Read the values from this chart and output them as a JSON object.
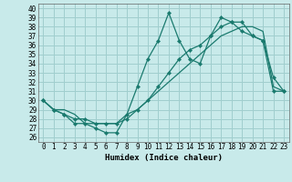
{
  "title": "",
  "xlabel": "Humidex (Indice chaleur)",
  "ylabel": "",
  "bg_color": "#c8eaea",
  "grid_color": "#a0cece",
  "line_color": "#1a7a6e",
  "xlim": [
    -0.5,
    23.5
  ],
  "ylim": [
    25.5,
    40.5
  ],
  "xticks": [
    0,
    1,
    2,
    3,
    4,
    5,
    6,
    7,
    8,
    9,
    10,
    11,
    12,
    13,
    14,
    15,
    16,
    17,
    18,
    19,
    20,
    21,
    22,
    23
  ],
  "yticks": [
    26,
    27,
    28,
    29,
    30,
    31,
    32,
    33,
    34,
    35,
    36,
    37,
    38,
    39,
    40
  ],
  "series1_x": [
    0,
    1,
    2,
    3,
    4,
    5,
    6,
    7,
    8,
    9,
    10,
    11,
    12,
    13,
    14,
    15,
    16,
    17,
    18,
    19,
    20,
    21,
    22,
    23
  ],
  "series1_y": [
    30.0,
    29.0,
    28.5,
    27.5,
    27.5,
    27.0,
    26.5,
    26.5,
    28.5,
    31.5,
    34.5,
    36.5,
    39.5,
    36.5,
    34.5,
    34.0,
    37.0,
    39.0,
    38.5,
    37.5,
    37.0,
    36.5,
    32.5,
    31.0
  ],
  "series2_x": [
    0,
    1,
    2,
    3,
    4,
    5,
    6,
    7,
    8,
    9,
    10,
    11,
    12,
    13,
    14,
    15,
    16,
    17,
    18,
    19,
    20,
    21,
    22,
    23
  ],
  "series2_y": [
    30.0,
    29.0,
    28.5,
    28.0,
    28.0,
    27.5,
    27.5,
    27.5,
    28.0,
    29.0,
    30.0,
    31.5,
    33.0,
    34.5,
    35.5,
    36.0,
    37.0,
    38.0,
    38.5,
    38.5,
    37.0,
    36.5,
    31.0,
    31.0
  ],
  "series3_x": [
    0,
    1,
    2,
    3,
    4,
    5,
    6,
    7,
    8,
    9,
    10,
    11,
    12,
    13,
    14,
    15,
    16,
    17,
    18,
    19,
    20,
    21,
    22,
    23
  ],
  "series3_y": [
    30.0,
    29.0,
    29.0,
    28.5,
    27.5,
    27.5,
    27.5,
    27.5,
    28.5,
    29.0,
    30.0,
    31.0,
    32.0,
    33.0,
    34.0,
    35.0,
    36.0,
    37.0,
    37.5,
    38.0,
    38.0,
    37.5,
    31.5,
    31.0
  ],
  "xlabel_fontsize": 6.5,
  "tick_fontsize": 5.5
}
